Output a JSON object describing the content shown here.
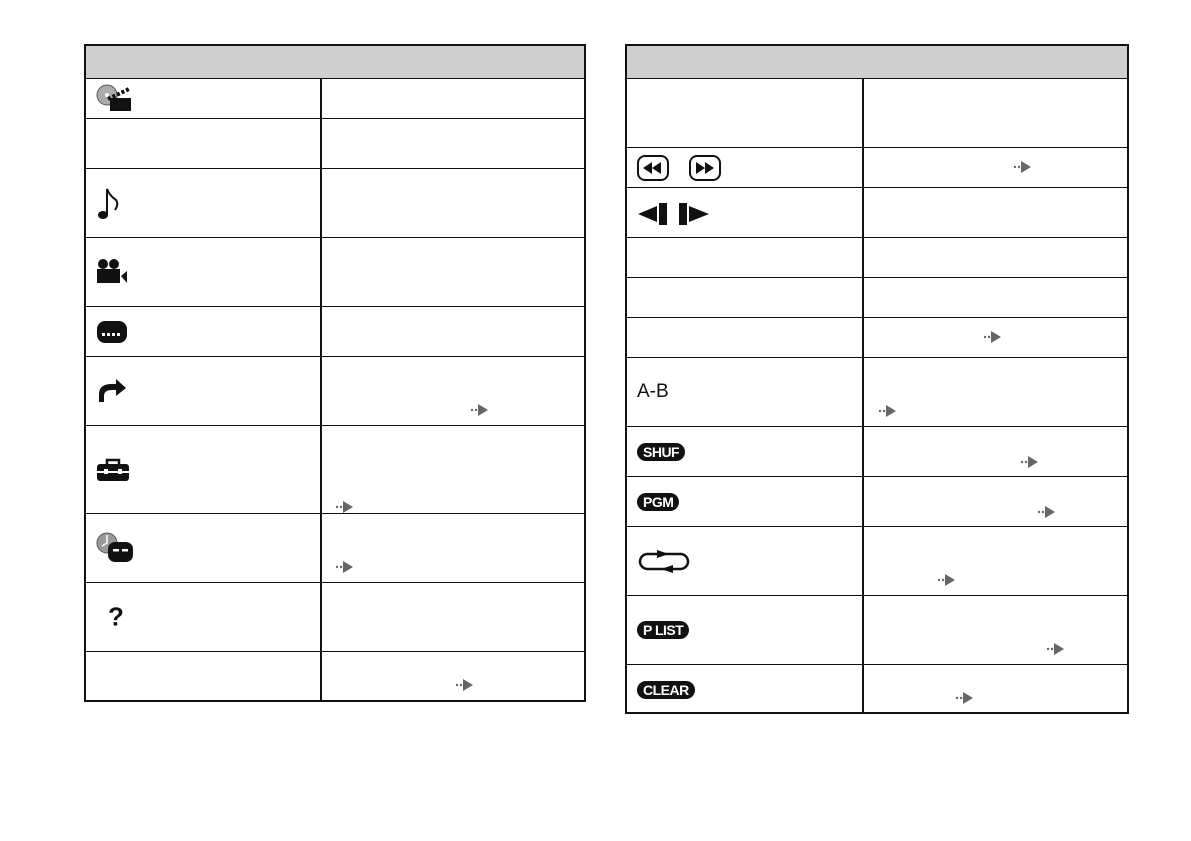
{
  "left_table": {
    "rows": [
      {
        "icon": "disc-clapper-icon"
      },
      {
        "icon": ""
      },
      {
        "icon": "music-note-icon"
      },
      {
        "icon": "movie-camera-icon"
      },
      {
        "icon": "subtitle-display-icon"
      },
      {
        "icon": "jump-arrow-icon",
        "ref_arrow": true
      },
      {
        "icon": "toolbox-icon",
        "ref_arrow": true
      },
      {
        "icon": "timer-display-icon",
        "ref_arrow": true
      },
      {
        "icon": "question-icon",
        "label": "?"
      },
      {
        "icon": "",
        "ref_arrow": true
      }
    ]
  },
  "right_table": {
    "rows": [
      {
        "icon": ""
      },
      {
        "icon": "rewind-fastforward-icon",
        "ref_arrow": true
      },
      {
        "icon": "slow-step-icon"
      },
      {
        "icon": ""
      },
      {
        "icon": ""
      },
      {
        "icon": "",
        "ref_arrow": true
      },
      {
        "icon": "ab-repeat-icon",
        "label": "A-B",
        "ref_arrow": true
      },
      {
        "icon": "shuffle-badge-icon",
        "label": "SHUF",
        "ref_arrow": true
      },
      {
        "icon": "program-badge-icon",
        "label": "PGM",
        "ref_arrow": true
      },
      {
        "icon": "repeat-loop-icon",
        "ref_arrow": true
      },
      {
        "icon": "playlist-badge-icon",
        "label": "P LIST",
        "ref_arrow": true
      },
      {
        "icon": "clear-badge-icon",
        "label": "CLEAR",
        "ref_arrow": true
      }
    ]
  },
  "colors": {
    "header_fill": "#cfcfcf",
    "reference_arrow": "#666666"
  }
}
